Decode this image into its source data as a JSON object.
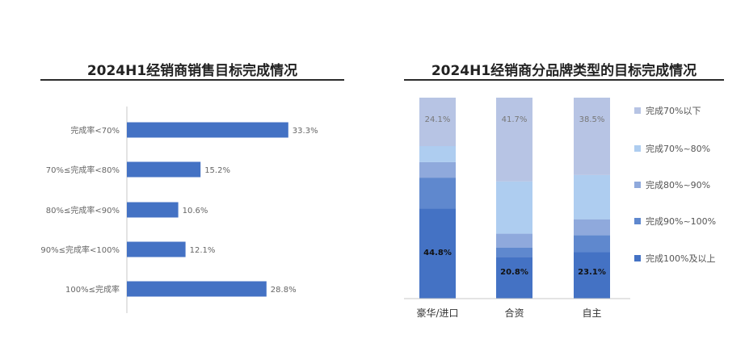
{
  "colors": {
    "bar_blue": "#4472c4",
    "seg_below70": "#b7c4e4",
    "seg_70_80": "#aecdf0",
    "seg_80_90": "#8fa9dc",
    "seg_90_100": "#5f88ce",
    "seg_100_plus": "#4472c4"
  },
  "chart_data": [
    {
      "type": "bar",
      "orientation": "horizontal",
      "title": "2024H1经销商销售目标完成情况",
      "categories": [
        "完成率<70%",
        "70%≤完成率<80%",
        "80%≤完成率<90%",
        "90%≤完成率<100%",
        "100%≤完成率"
      ],
      "values": [
        33.3,
        15.2,
        10.6,
        12.1,
        28.8
      ],
      "value_labels": [
        "33.3%",
        "15.2%",
        "10.6%",
        "12.1%",
        "28.8%"
      ],
      "xlim": [
        0,
        35
      ],
      "grid": false
    },
    {
      "type": "bar",
      "stacked": true,
      "percent_stacked": true,
      "title": "2024H1经销商分品牌类型的目标完成情况",
      "categories": [
        "豪华/进口",
        "合资",
        "自主"
      ],
      "series": [
        {
          "name": "完成100%及以上",
          "values": [
            44.8,
            20.8,
            23.1
          ],
          "labels": [
            "44.8%",
            "20.8%",
            "23.1%"
          ]
        },
        {
          "name": "完成90%~100%",
          "values": [
            15.4,
            4.5,
            8.4
          ]
        },
        {
          "name": "完成80%~90%",
          "values": [
            7.7,
            7.0,
            8.0
          ]
        },
        {
          "name": "完成70%~80%",
          "values": [
            8.0,
            26.0,
            22.0
          ]
        },
        {
          "name": "完成70%以下",
          "values": [
            24.1,
            41.7,
            38.5
          ],
          "labels": [
            "24.1%",
            "41.7%",
            "38.5%"
          ]
        }
      ],
      "ylim": [
        0,
        100
      ],
      "legend_position": "right",
      "grid": false
    }
  ]
}
